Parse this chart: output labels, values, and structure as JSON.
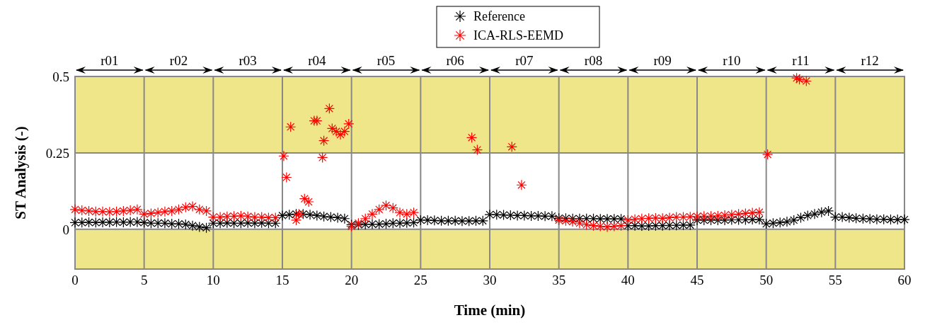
{
  "chart_data": {
    "type": "scatter",
    "xlabel": "Time (min)",
    "ylabel": "ST Analysis (-)",
    "xlim": [
      0,
      60
    ],
    "xticks": [
      0,
      5,
      10,
      15,
      20,
      25,
      30,
      35,
      40,
      45,
      50,
      55,
      60
    ],
    "ylim": [
      -0.13,
      0.5
    ],
    "yticks": [
      0,
      0.25,
      0.5
    ],
    "grid": true,
    "legend": "top",
    "marker": "cross",
    "annotations": [
      "r01",
      "r02",
      "r03",
      "r04",
      "r05",
      "r06",
      "r07",
      "r08",
      "r09",
      "r10",
      "r11",
      "r12"
    ],
    "bands": [
      {
        "axis": "y",
        "from": 0.25,
        "to": 0.5,
        "color": "#efe68a"
      },
      {
        "axis": "y",
        "from": -0.13,
        "to": 0,
        "color": "#efe68a"
      }
    ],
    "series": [
      {
        "name": "Reference",
        "color": "#000000",
        "x": [
          0,
          0.5,
          1,
          1.5,
          2,
          2.5,
          3,
          3.5,
          4,
          4.5,
          5,
          5.5,
          6,
          6.5,
          7,
          7.5,
          8,
          8.5,
          9,
          9.5,
          10,
          10.5,
          11,
          11.5,
          12,
          12.5,
          13,
          13.5,
          14,
          14.5,
          15,
          15.5,
          16,
          16.5,
          17,
          17.5,
          18,
          18.5,
          19,
          19.5,
          20,
          20.5,
          21,
          21.5,
          22,
          22.5,
          23,
          23.5,
          24,
          24.5,
          25,
          25.5,
          26,
          26.5,
          27,
          27.5,
          28,
          28.5,
          29,
          29.5,
          30,
          30.5,
          31,
          31.5,
          32,
          32.5,
          33,
          33.5,
          34,
          34.5,
          35,
          35.5,
          36,
          36.5,
          37,
          37.5,
          38,
          38.5,
          39,
          39.5,
          40,
          40.5,
          41,
          41.5,
          42,
          42.5,
          43,
          43.5,
          44,
          44.5,
          45,
          45.5,
          46,
          46.5,
          47,
          47.5,
          48,
          48.5,
          49,
          49.5,
          50,
          50.5,
          51,
          51.5,
          52,
          52.5,
          53,
          53.5,
          54,
          54.5,
          55,
          55.5,
          56,
          56.5,
          57,
          57.5,
          58,
          58.5,
          59,
          59.5,
          60
        ],
        "values": [
          0.022,
          0.022,
          0.023,
          0.022,
          0.023,
          0.023,
          0.024,
          0.023,
          0.024,
          0.024,
          0.022,
          0.02,
          0.02,
          0.02,
          0.018,
          0.018,
          0.016,
          0.012,
          0.008,
          0.005,
          0.02,
          0.02,
          0.021,
          0.02,
          0.02,
          0.021,
          0.02,
          0.021,
          0.02,
          0.02,
          0.045,
          0.048,
          0.05,
          0.05,
          0.048,
          0.045,
          0.042,
          0.04,
          0.038,
          0.035,
          0.015,
          0.015,
          0.016,
          0.017,
          0.017,
          0.018,
          0.02,
          0.02,
          0.021,
          0.022,
          0.03,
          0.03,
          0.029,
          0.028,
          0.028,
          0.028,
          0.027,
          0.027,
          0.028,
          0.028,
          0.048,
          0.048,
          0.047,
          0.046,
          0.045,
          0.045,
          0.044,
          0.044,
          0.043,
          0.043,
          0.036,
          0.036,
          0.035,
          0.035,
          0.035,
          0.035,
          0.034,
          0.034,
          0.034,
          0.034,
          0.012,
          0.012,
          0.011,
          0.011,
          0.012,
          0.012,
          0.013,
          0.013,
          0.014,
          0.014,
          0.03,
          0.03,
          0.03,
          0.03,
          0.03,
          0.031,
          0.031,
          0.031,
          0.032,
          0.032,
          0.018,
          0.02,
          0.022,
          0.025,
          0.03,
          0.038,
          0.045,
          0.05,
          0.056,
          0.06,
          0.04,
          0.04,
          0.038,
          0.036,
          0.035,
          0.034,
          0.033,
          0.033,
          0.032,
          0.032,
          0.032
        ]
      },
      {
        "name": "ICA-RLS-EEMD",
        "color": "#ff0000",
        "x": [
          0,
          0.5,
          1,
          1.5,
          2,
          2.5,
          3,
          3.5,
          4,
          4.5,
          5,
          5.5,
          6,
          6.5,
          7,
          7.5,
          8,
          8.5,
          9,
          9.5,
          10,
          10.5,
          11,
          11.5,
          12,
          12.5,
          13,
          13.5,
          14,
          14.5,
          15.1,
          15.3,
          15.6,
          16,
          16.2,
          16.6,
          16.9,
          17.3,
          17.5,
          17.9,
          18,
          18.4,
          18.6,
          18.9,
          19.2,
          19.5,
          19.8,
          20,
          20.5,
          21,
          21.5,
          22,
          22.5,
          23,
          23.5,
          24,
          24.5,
          28.7,
          29.1,
          31.6,
          32.3,
          35,
          35.5,
          36,
          36.5,
          37,
          37.5,
          38,
          38.5,
          39,
          39.5,
          40,
          40.5,
          41,
          41.5,
          42,
          42.5,
          43,
          43.5,
          44,
          44.5,
          45,
          45.5,
          46,
          46.5,
          47,
          47.5,
          48,
          48.5,
          49,
          49.5,
          50.1,
          52.2,
          52.4,
          52.9
        ],
        "values": [
          0.065,
          0.062,
          0.06,
          0.058,
          0.058,
          0.057,
          0.058,
          0.06,
          0.062,
          0.065,
          0.05,
          0.052,
          0.055,
          0.058,
          0.06,
          0.065,
          0.072,
          0.075,
          0.065,
          0.06,
          0.04,
          0.04,
          0.042,
          0.043,
          0.044,
          0.042,
          0.04,
          0.04,
          0.038,
          0.038,
          0.24,
          0.17,
          0.335,
          0.03,
          0.05,
          0.1,
          0.09,
          0.355,
          0.355,
          0.235,
          0.29,
          0.395,
          0.33,
          0.32,
          0.31,
          0.32,
          0.345,
          0.01,
          0.02,
          0.035,
          0.05,
          0.065,
          0.078,
          0.07,
          0.055,
          0.05,
          0.055,
          0.3,
          0.26,
          0.27,
          0.145,
          0.03,
          0.028,
          0.025,
          0.02,
          0.015,
          0.012,
          0.01,
          0.008,
          0.01,
          0.012,
          0.03,
          0.033,
          0.035,
          0.036,
          0.037,
          0.036,
          0.038,
          0.04,
          0.04,
          0.041,
          0.042,
          0.043,
          0.043,
          0.044,
          0.046,
          0.048,
          0.05,
          0.052,
          0.054,
          0.056,
          0.245,
          0.495,
          0.49,
          0.485
        ]
      }
    ]
  }
}
